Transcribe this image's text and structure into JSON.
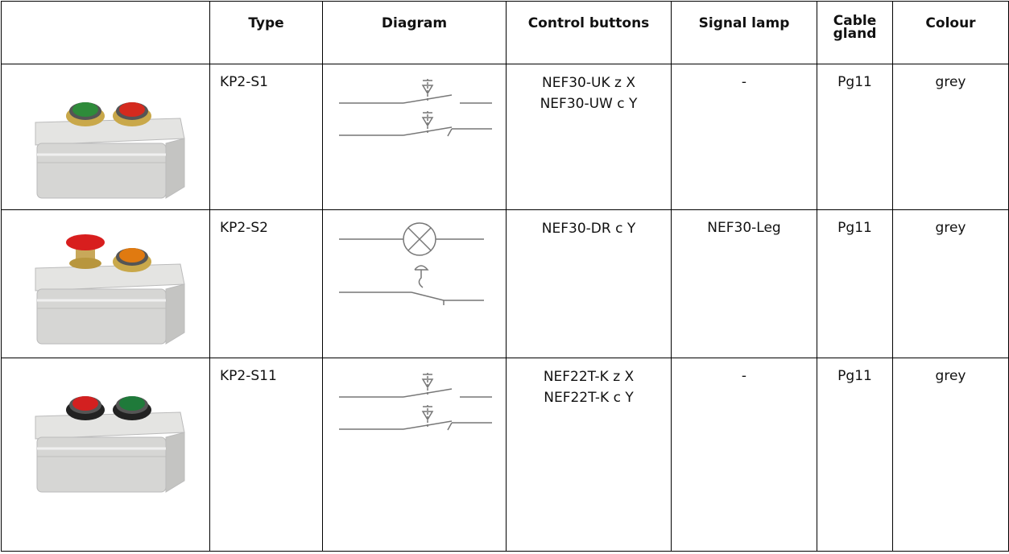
{
  "table": {
    "header": [
      "Type",
      "Diagram",
      "Control buttons",
      "Signal lamp",
      "Cable gland",
      "Colour"
    ],
    "rows": [
      {
        "type": "KP2-S1",
        "control_buttons": [
          "NEF30-UK z X",
          "NEF30-UW c Y"
        ],
        "signal_lamp": "-",
        "cable_gland": "Pg11",
        "colour": "grey"
      },
      {
        "type": "KP2-S2",
        "control_buttons": [
          "NEF30-DR c Y"
        ],
        "signal_lamp": "NEF30-Leg",
        "cable_gland": "Pg11",
        "colour": "grey"
      },
      {
        "type": "KP2-S11",
        "control_buttons": [
          "NEF22T-K z X",
          "NEF22T-K c Y"
        ],
        "signal_lamp": "-",
        "cable_gland": "Pg11",
        "colour": "grey"
      }
    ]
  }
}
